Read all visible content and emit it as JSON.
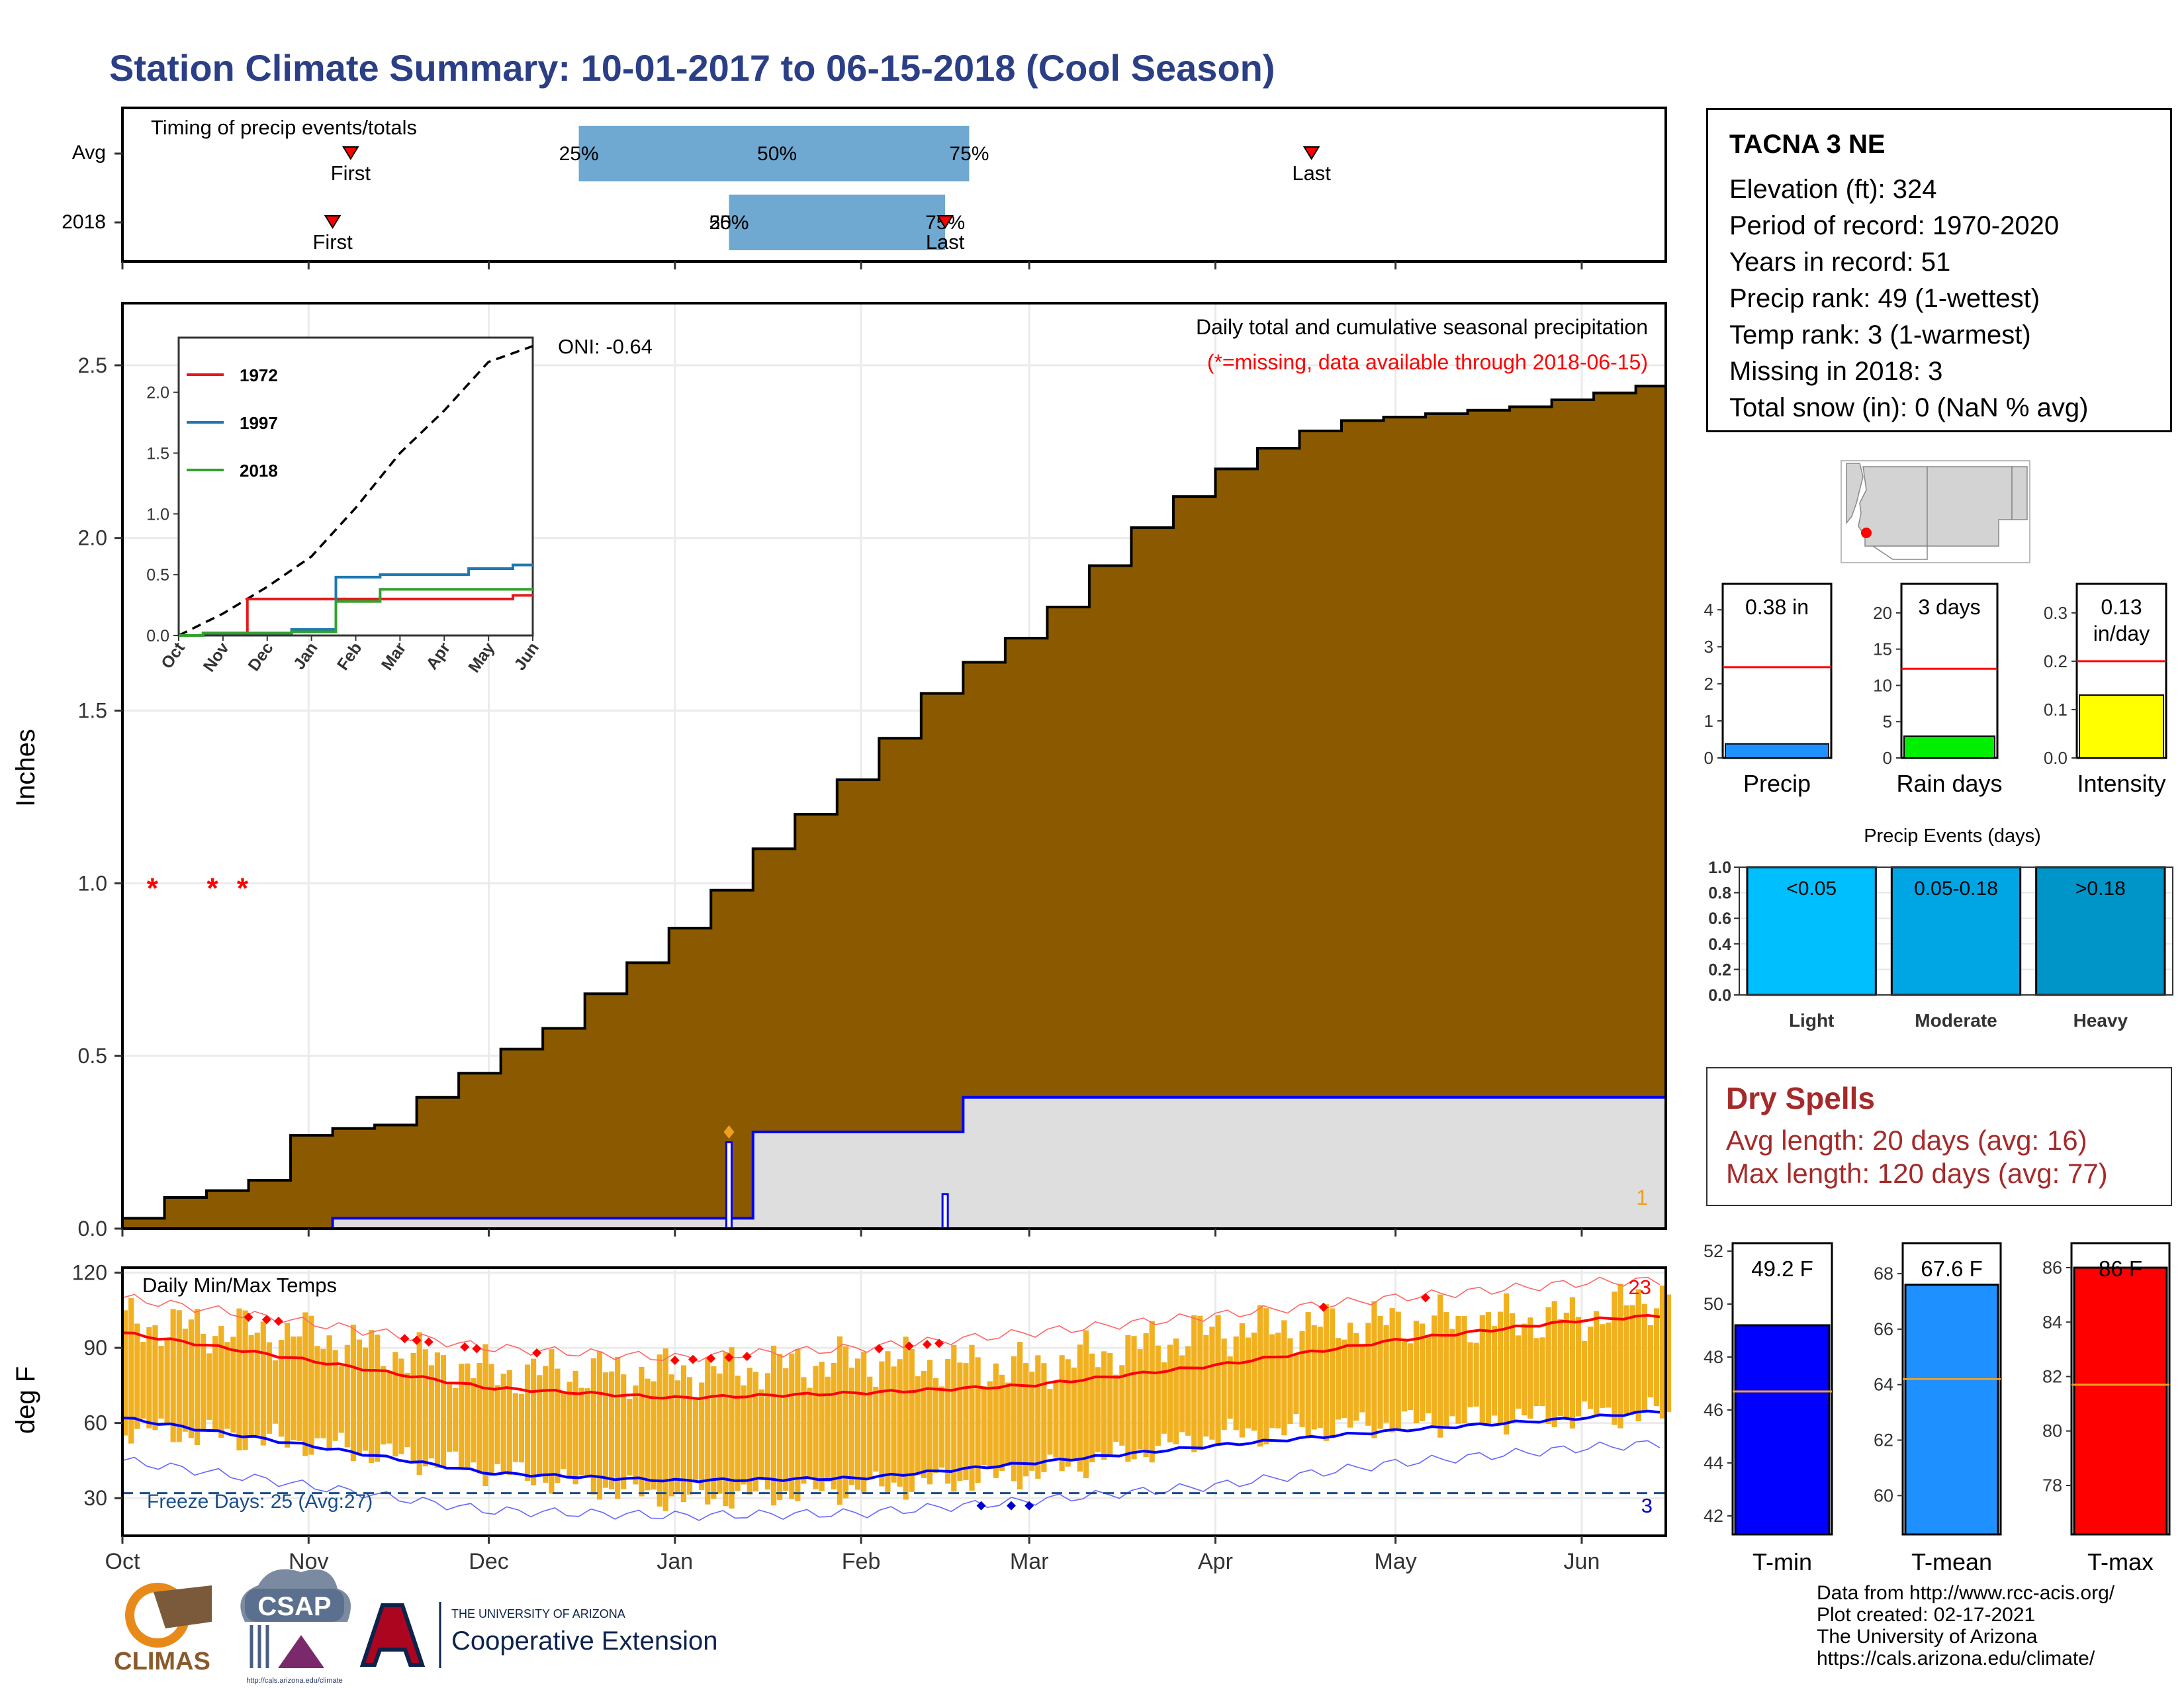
{
  "title": "Station Climate Summary: 10-01-2017 to 06-15-2018 (Cool Season)",
  "timing": {
    "title": "Timing of precip events/totals",
    "rows": [
      {
        "label": "Avg",
        "first_label": "First",
        "last_label": "Last",
        "p25": "25%",
        "p50": "50%",
        "p75": "75%"
      },
      {
        "label": "2018",
        "first_label": "First",
        "last_label": "Last",
        "p25": "25%",
        "p50": "50%",
        "p75": "75%"
      }
    ],
    "month_ticks": [
      "Oct",
      "Nov",
      "Dec",
      "Jan",
      "Feb",
      "Mar",
      "Apr",
      "May",
      "Jun"
    ]
  },
  "station": {
    "name": "TACNA 3 NE",
    "lines": [
      "Elevation (ft): 324",
      "Period of record: 1970-2020",
      "Years in record: 51",
      "Precip rank: 49 (1-wettest)",
      "Temp rank: 3 (1-warmest)",
      "Missing in 2018: 3",
      "Total snow (in): 0 (NaN % avg)"
    ]
  },
  "precip_panel": {
    "ylabel": "Inches",
    "title": "Daily total and cumulative seasonal precipitation",
    "missing_note": "(*=missing, data available through 2018-06-15)",
    "oni": "ONI: -0.64",
    "count_label": "1",
    "yticks": [
      "0.0",
      "0.5",
      "1.0",
      "1.5",
      "2.0",
      "2.5"
    ],
    "missing_marker": "*",
    "colors": {
      "avg_fill": "#8b5a00",
      "current_fill": "#dedede",
      "current_line": "#0000ff",
      "missing": "#ff0000"
    }
  },
  "inset": {
    "series_names": [
      "1972",
      "1997",
      "2018"
    ],
    "colors": [
      "#e31a1c",
      "#1f78b4",
      "#33a02c"
    ],
    "yticks": [
      "0.0",
      "0.5",
      "1.0",
      "1.5",
      "2.0"
    ],
    "xticks": [
      "Oct",
      "Nov",
      "Dec",
      "Jan",
      "Feb",
      "Mar",
      "Apr",
      "May",
      "Jun"
    ]
  },
  "temp_panel": {
    "ylabel": "deg F",
    "title": "Daily Min/Max Temps",
    "freeze": "Freeze Days: 25 (Avg:27)",
    "record_high_count": "23",
    "record_low_count": "3",
    "yticks": [
      "30",
      "60",
      "90",
      "120"
    ],
    "xticks": [
      "Oct",
      "Nov",
      "Dec",
      "Jan",
      "Feb",
      "Mar",
      "Apr",
      "May",
      "Jun"
    ],
    "colors": {
      "range_bar": "#f0b020",
      "avg_max": "#ff0000",
      "avg_min": "#0000ff",
      "freeze": "#1a4f8a"
    }
  },
  "bars_top": [
    {
      "label": "Precip",
      "value_label": "0.38 in",
      "yticks": [
        "0",
        "1",
        "2",
        "3",
        "4"
      ],
      "color": "#1e90ff"
    },
    {
      "label": "Rain days",
      "value_label": "3 days",
      "yticks": [
        "0",
        "5",
        "10",
        "15",
        "20"
      ],
      "color": "#00ee00"
    },
    {
      "label": "Intensity",
      "value_label": "0.13",
      "value_label2": "in/day",
      "yticks": [
        "0.0",
        "0.1",
        "0.2",
        "0.3"
      ],
      "color": "#ffff00"
    }
  ],
  "events": {
    "title": "Precip Events (days)",
    "yticks": [
      "0.0",
      "0.2",
      "0.4",
      "0.6",
      "0.8",
      "1.0"
    ],
    "bars": [
      {
        "label": "Light",
        "top": "<0.05",
        "color": "#00bfff"
      },
      {
        "label": "Moderate",
        "top": "0.05-0.18",
        "color": "#00a5e3"
      },
      {
        "label": "Heavy",
        "top": ">0.18",
        "color": "#0095c8"
      }
    ]
  },
  "dry_spells": {
    "title": "Dry Spells",
    "avg": "Avg length: 20 days (avg: 16)",
    "max": "Max length: 120 days (avg: 77)",
    "color": "#a52a2a"
  },
  "temp_bars": [
    {
      "label": "T-min",
      "value_label": "49.2 F",
      "yticks": [
        "42",
        "44",
        "46",
        "48",
        "50",
        "52"
      ],
      "color": "#0000ff"
    },
    {
      "label": "T-mean",
      "value_label": "67.6 F",
      "yticks": [
        "60",
        "62",
        "64",
        "66",
        "68"
      ],
      "color": "#1e90ff"
    },
    {
      "label": "T-max",
      "value_label": "86 F",
      "yticks": [
        "78",
        "80",
        "82",
        "84",
        "86"
      ],
      "color": "#ff0000"
    }
  ],
  "logos": {
    "climas": "CLIMAS",
    "csap": "CSAP",
    "csap_url": "http://cals.arizona.edu/climate",
    "ua_small": "THE UNIVERSITY OF ARIZONA",
    "ua_big": "Cooperative Extension"
  },
  "credits": [
    "Data from http://www.rcc-acis.org/",
    "Plot created: 02-17-2021",
    "The University of Arizona",
    "https://cals.arizona.edu/climate/"
  ],
  "chart_data": [
    {
      "type": "bar",
      "title": "Timing of precip events/totals",
      "categories": [
        "Avg",
        "2018"
      ],
      "series": [
        {
          "name": "First",
          "values": [
            "2017-11-08",
            "2017-11-05"
          ]
        },
        {
          "name": "25%",
          "values": [
            "2017-12-16",
            "2018-01-10"
          ]
        },
        {
          "name": "50%",
          "values": [
            "2018-01-18",
            "2018-01-10"
          ]
        },
        {
          "name": "75%",
          "values": [
            "2018-02-19",
            "2018-02-15"
          ]
        },
        {
          "name": "Last",
          "values": [
            "2018-04-17",
            "2018-02-15"
          ]
        }
      ]
    },
    {
      "type": "area",
      "title": "Daily total and cumulative seasonal precipitation",
      "ylabel": "Inches",
      "ylim": [
        0,
        2.68
      ],
      "x": [
        "2017-10-01",
        "2017-10-08",
        "2017-10-15",
        "2017-10-22",
        "2017-10-29",
        "2017-11-05",
        "2017-11-12",
        "2017-11-19",
        "2017-11-26",
        "2017-12-03",
        "2017-12-10",
        "2017-12-17",
        "2017-12-24",
        "2017-12-31",
        "2018-01-07",
        "2018-01-14",
        "2018-01-21",
        "2018-01-28",
        "2018-02-04",
        "2018-02-11",
        "2018-02-18",
        "2018-02-25",
        "2018-03-04",
        "2018-03-11",
        "2018-03-18",
        "2018-03-25",
        "2018-04-01",
        "2018-04-08",
        "2018-04-15",
        "2018-04-22",
        "2018-04-29",
        "2018-05-06",
        "2018-05-13",
        "2018-05-20",
        "2018-05-27",
        "2018-06-03",
        "2018-06-10",
        "2018-06-15"
      ],
      "series": [
        {
          "name": "Average cumulative",
          "values": [
            0.03,
            0.09,
            0.11,
            0.14,
            0.27,
            0.29,
            0.3,
            0.38,
            0.45,
            0.52,
            0.58,
            0.68,
            0.77,
            0.87,
            0.98,
            1.1,
            1.2,
            1.3,
            1.42,
            1.55,
            1.64,
            1.71,
            1.8,
            1.92,
            2.03,
            2.12,
            2.2,
            2.26,
            2.31,
            2.34,
            2.35,
            2.36,
            2.37,
            2.38,
            2.4,
            2.42,
            2.44,
            2.45
          ]
        },
        {
          "name": "2018 cumulative",
          "values": [
            0,
            0,
            0,
            0,
            0,
            0.03,
            0.03,
            0.03,
            0.03,
            0.03,
            0.03,
            0.03,
            0.03,
            0.03,
            0.03,
            0.28,
            0.28,
            0.28,
            0.28,
            0.28,
            0.38,
            0.38,
            0.38,
            0.38,
            0.38,
            0.38,
            0.38,
            0.38,
            0.38,
            0.38,
            0.38,
            0.38,
            0.38,
            0.38,
            0.38,
            0.38,
            0.38,
            0.38
          ]
        }
      ],
      "missing_dates": [
        "2017-10-06",
        "2017-10-16",
        "2017-10-21"
      ]
    },
    {
      "type": "line",
      "title": "",
      "x": [
        "Oct",
        "Nov",
        "Dec",
        "Jan",
        "Feb",
        "Mar",
        "Apr",
        "May",
        "Jun"
      ],
      "ylim": [
        0,
        2.5
      ],
      "series": [
        {
          "name": "Average",
          "values": [
            0.0,
            0.18,
            0.4,
            0.65,
            1.05,
            1.5,
            1.85,
            2.25,
            2.38
          ]
        },
        {
          "name": "1972",
          "values": [
            0.0,
            0.02,
            0.3,
            0.3,
            0.3,
            0.3,
            0.3,
            0.3,
            0.33
          ]
        },
        {
          "name": "1997",
          "values": [
            0.0,
            0.02,
            0.02,
            0.05,
            0.48,
            0.5,
            0.5,
            0.55,
            0.58
          ]
        },
        {
          "name": "2018",
          "values": [
            0.0,
            0.02,
            0.02,
            0.03,
            0.28,
            0.38,
            0.38,
            0.38,
            0.38
          ]
        }
      ]
    },
    {
      "type": "line",
      "title": "Daily Min/Max Temps",
      "ylabel": "deg F",
      "ylim": [
        15,
        122
      ],
      "x": [
        "2017-10-01",
        "2017-11-01",
        "2017-12-01",
        "2018-01-01",
        "2018-02-01",
        "2018-03-01",
        "2018-04-01",
        "2018-05-01",
        "2018-06-01",
        "2018-06-15"
      ],
      "series": [
        {
          "name": "Avg max",
          "values": [
            96,
            85,
            74,
            70,
            72,
            75,
            83,
            93,
            101,
            103
          ]
        },
        {
          "name": "Avg min",
          "values": [
            62,
            51,
            40,
            37,
            38,
            44,
            51,
            57,
            62,
            65
          ]
        },
        {
          "name": "Record max",
          "values": [
            110,
            100,
            90,
            86,
            90,
            96,
            103,
            110,
            116,
            117
          ]
        },
        {
          "name": "Record min",
          "values": [
            45,
            35,
            25,
            23,
            24,
            29,
            35,
            44,
            50,
            52
          ]
        },
        {
          "name": "Daily max",
          "values": [
            100,
            95,
            80,
            80,
            85,
            82,
            97,
            100,
            102,
            112
          ]
        },
        {
          "name": "Daily min",
          "values": [
            58,
            52,
            41,
            30,
            34,
            40,
            55,
            60,
            63,
            64
          ]
        }
      ],
      "freeze_line": 32
    },
    {
      "type": "bar",
      "categories": [
        "Precip",
        "Rain days",
        "Intensity"
      ],
      "series": [
        {
          "name": "Observed",
          "values": [
            0.38,
            3,
            0.13
          ]
        },
        {
          "name": "Average",
          "values": [
            2.45,
            12.3,
            0.2
          ]
        }
      ],
      "ylims": [
        [
          0,
          4.7
        ],
        [
          0,
          24
        ],
        [
          0,
          0.36
        ]
      ]
    },
    {
      "type": "bar",
      "title": "Precip Events (days)",
      "categories": [
        "Light",
        "Moderate",
        "Heavy"
      ],
      "values": [
        1.0,
        1.0,
        1.0
      ],
      "ylim": [
        0,
        1.0
      ]
    },
    {
      "type": "bar",
      "categories": [
        "T-min",
        "T-mean",
        "T-max"
      ],
      "series": [
        {
          "name": "Observed",
          "values": [
            49.2,
            67.6,
            86
          ]
        },
        {
          "name": "Average",
          "values": [
            46.7,
            64.2,
            81.7
          ]
        }
      ],
      "ylims": [
        [
          41.3,
          52.3
        ],
        [
          58.6,
          69.1
        ],
        [
          76.2,
          86.9
        ]
      ]
    }
  ]
}
